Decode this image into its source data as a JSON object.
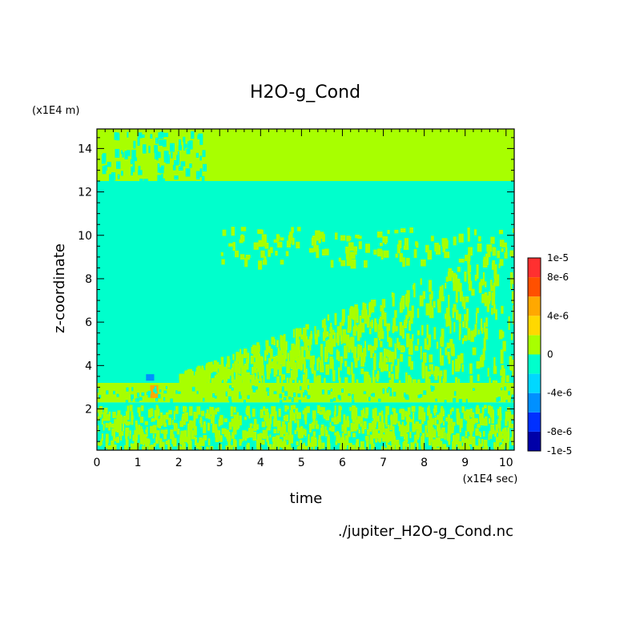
{
  "chart_data": {
    "type": "heatmap",
    "title": "H2O-g_Cond",
    "xlabel": "time",
    "ylabel": "z-coordinate",
    "x_unit": "(x1E4 sec)",
    "y_unit": "(x1E4 m)",
    "source_label": "./jupiter_H2O-g_Cond.nc",
    "xlim": [
      0,
      10.2
    ],
    "ylim": [
      0.1,
      14.9
    ],
    "x_ticks": [
      "0",
      "1",
      "2",
      "3",
      "4",
      "5",
      "6",
      "7",
      "8",
      "9",
      "10"
    ],
    "y_ticks": [
      "2",
      "4",
      "6",
      "8",
      "10",
      "12",
      "14"
    ],
    "colorbar": {
      "labels": [
        "1e-5",
        "8e-6",
        "4e-6",
        "0",
        "-4e-6",
        "-8e-6",
        "-1e-5"
      ],
      "label_values": [
        1e-05,
        8e-06,
        4e-06,
        0,
        -4e-06,
        -8e-06,
        -1e-05
      ],
      "levels": [
        -1e-05,
        -8e-06,
        -6e-06,
        -4e-06,
        -2e-06,
        0,
        2e-06,
        4e-06,
        6e-06,
        8e-06,
        1e-05
      ],
      "colors": [
        "#0000a8",
        "#0030ff",
        "#0090ff",
        "#00d8ff",
        "#00ffcc",
        "#a8ff00",
        "#ffd800",
        "#ffa800",
        "#ff5000",
        "#ff3030"
      ]
    },
    "regions": [
      {
        "x": [
          0,
          10.2
        ],
        "y": [
          12.5,
          14.9
        ],
        "value": 1e-06
      },
      {
        "x": [
          0,
          10.2
        ],
        "y": [
          3.2,
          12.5
        ],
        "value": -1e-06
      },
      {
        "x": [
          0,
          10.2
        ],
        "y": [
          2.3,
          3.2
        ],
        "value": 1e-06
      },
      {
        "x": [
          0,
          10.2
        ],
        "y": [
          0.1,
          2.3
        ],
        "value": -1e-06
      },
      {
        "x": [
          1.2,
          1.4
        ],
        "y": [
          3.3,
          3.6
        ],
        "value": -5e-06
      },
      {
        "x": [
          1.3,
          1.5
        ],
        "y": [
          2.5,
          3.1
        ],
        "value": 5e-06
      }
    ]
  }
}
